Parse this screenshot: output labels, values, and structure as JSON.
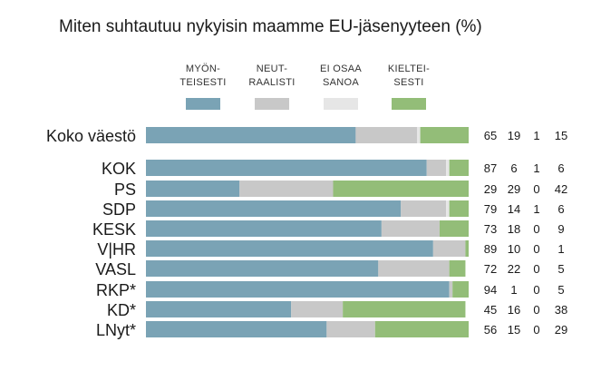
{
  "chart_data": {
    "type": "bar",
    "orientation": "horizontal",
    "stacked": true,
    "title": "Miten suhtautuu nykyisin maamme EU-jäsenyyteen (%)",
    "xlim": [
      0,
      100
    ],
    "legend_position": "top",
    "categories": [
      "Koko väestö",
      "KOK",
      "PS",
      "SDP",
      "KESK",
      "V|HR",
      "VASL",
      "RKP*",
      "KD*",
      "LNyt*"
    ],
    "series": [
      {
        "name": "MYÖN-\nTEISESTI",
        "color": "#7aa3b5",
        "values": [
          65,
          87,
          29,
          79,
          73,
          89,
          72,
          94,
          45,
          56
        ]
      },
      {
        "name": "NEUT-\nRAALISTI",
        "color": "#c8c8c8",
        "values": [
          19,
          6,
          29,
          14,
          18,
          10,
          22,
          1,
          16,
          15
        ]
      },
      {
        "name": "EI OSAA\nSANOA",
        "color": "#e6e6e6",
        "values": [
          1,
          1,
          0,
          1,
          0,
          0,
          0,
          0,
          0,
          0
        ]
      },
      {
        "name": "KIELTEI-\nSESTI",
        "color": "#93bd78",
        "values": [
          15,
          6,
          42,
          6,
          9,
          1,
          5,
          5,
          38,
          29
        ]
      }
    ]
  }
}
